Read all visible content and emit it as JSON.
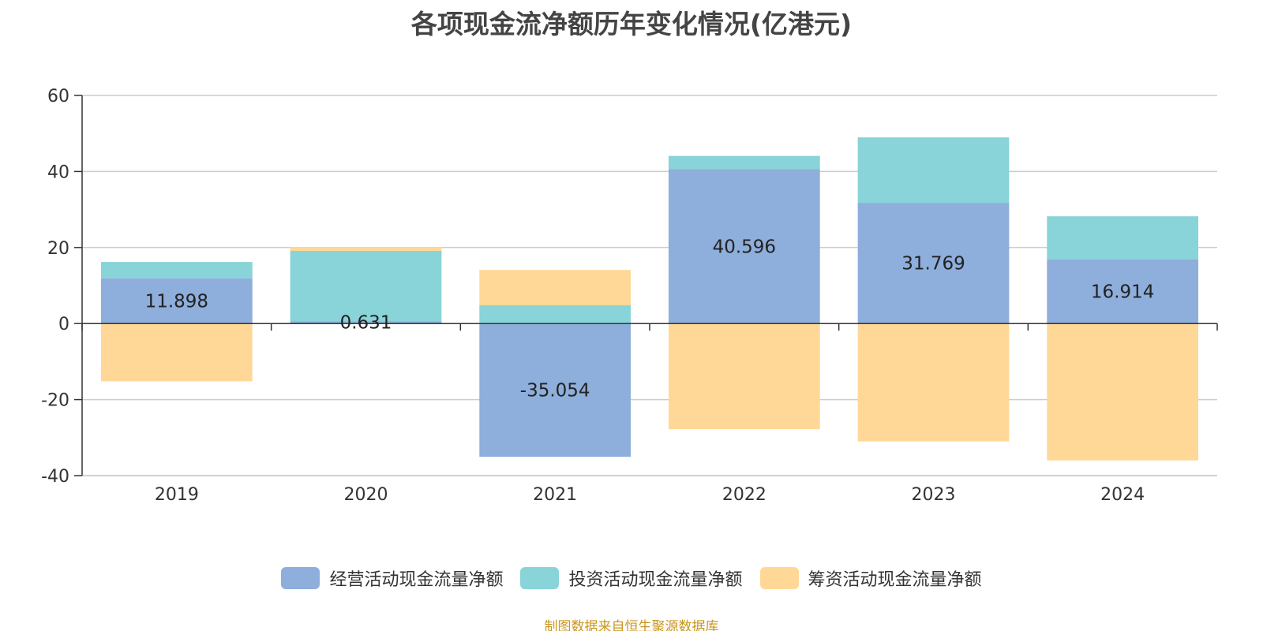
{
  "chart_data": {
    "type": "bar",
    "stacked": true,
    "title": "各项现金流净额历年变化情况(亿港元)",
    "categories": [
      "2019",
      "2020",
      "2021",
      "2022",
      "2023",
      "2024"
    ],
    "ylim": [
      -40,
      60
    ],
    "yticks": [
      -40,
      -20,
      0,
      20,
      40,
      60
    ],
    "grid": true,
    "legend_position": "bottom",
    "series": [
      {
        "name": "经营活动现金流量净额",
        "color": "#8eaedb",
        "values": [
          11.898,
          0.631,
          -35.054,
          40.596,
          31.769,
          16.914
        ],
        "labels": [
          "11.898",
          "0.631",
          "-35.054",
          "40.596",
          "31.769",
          "16.914"
        ]
      },
      {
        "name": "投资活动现金流量净额",
        "color": "#88d4d8",
        "values": [
          4.3,
          18.5,
          4.8,
          3.5,
          17.2,
          11.3
        ]
      },
      {
        "name": "筹资活动现金流量净额",
        "color": "#ffd898",
        "values": [
          -15.2,
          1.0,
          9.3,
          -27.8,
          -31.0,
          -36.0
        ]
      }
    ]
  },
  "source": "制图数据来自恒生聚源数据库"
}
